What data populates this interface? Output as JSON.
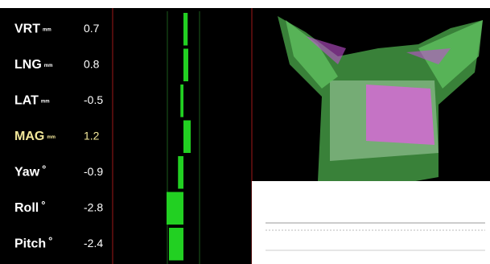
{
  "rows": [
    {
      "label": "VRT",
      "unit": "mm",
      "value": 0.7
    },
    {
      "label": "LNG",
      "unit": "mm",
      "value": 0.8
    },
    {
      "label": "LAT",
      "unit": "mm",
      "value": -0.5
    },
    {
      "label": "MAG",
      "unit": "mm",
      "value": 1.2
    },
    {
      "label": "Yaw",
      "unit": "°",
      "value": -0.9
    },
    {
      "label": "Roll",
      "unit": "°",
      "value": -2.8
    },
    {
      "label": "Pitch",
      "unit": "°",
      "value": -2.4
    }
  ]
}
